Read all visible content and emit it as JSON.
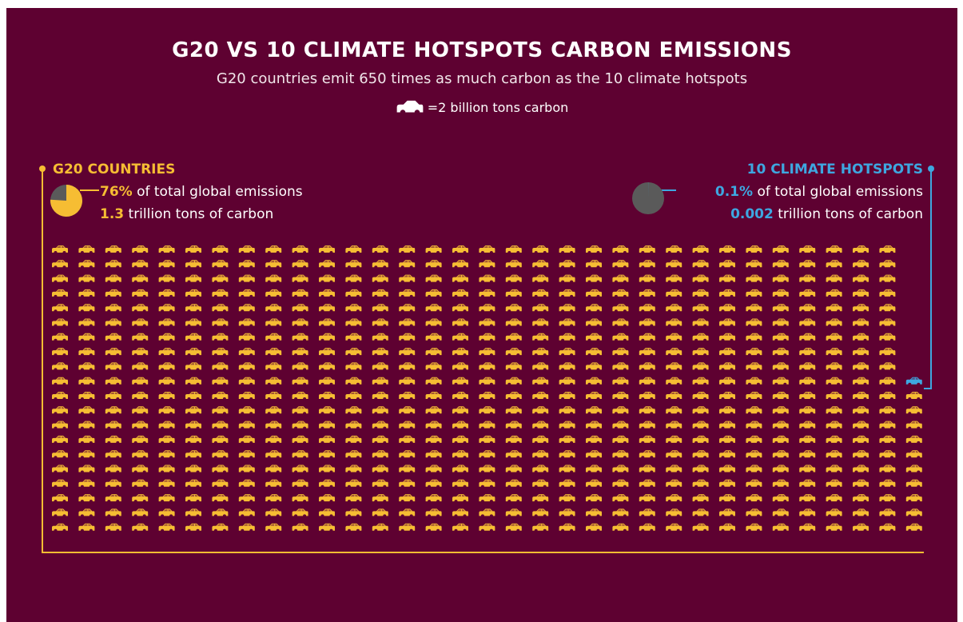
{
  "title": "G20 VS 10 CLIMATE HOTSPOTS CARBON EMISSIONS",
  "subtitle": "G20 countries emit 650 times as much carbon as the 10 climate hotspots",
  "legend": {
    "unit_text": "=2 billion tons carbon",
    "icon": "car-icon"
  },
  "g20": {
    "heading": "G20 COUNTRIES",
    "percent": "76%",
    "percent_text": " of total global emissions",
    "tons": "1.3",
    "tons_text": " trillion tons of carbon",
    "color": "#f6bd33"
  },
  "hotspots": {
    "heading": "10 CLIMATE HOTSPOTS",
    "percent": "0.1%",
    "percent_text": " of total global emissions",
    "tons": "0.002",
    "tons_text": " trillion tons of carbon",
    "color": "#3ea7e0"
  },
  "colors": {
    "background": "#5e0131",
    "pie_gray": "#5a5a5a"
  },
  "chart_data": {
    "type": "pictograph",
    "unit_value": 2,
    "unit_label": "billion tons carbon",
    "series": [
      {
        "name": "G20 COUNTRIES",
        "share_percent": 76,
        "emissions_trillion_tons": 1.3,
        "icon_count": 650,
        "color": "#f6bd33"
      },
      {
        "name": "10 CLIMATE HOTSPOTS",
        "share_percent": 0.1,
        "emissions_trillion_tons": 0.002,
        "icon_count": 1,
        "color": "#3ea7e0"
      }
    ]
  }
}
